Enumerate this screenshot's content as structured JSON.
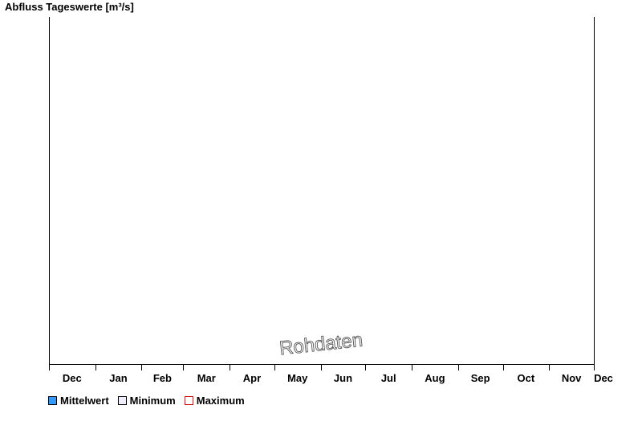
{
  "chart_data": {
    "type": "line",
    "title": "Abfluss Tageswerte [m³/s]",
    "xlabel": "",
    "ylabel": "",
    "x_tick_labels": [
      "Dec",
      "Jan",
      "Feb",
      "Mar",
      "Apr",
      "May",
      "Jun",
      "Jul",
      "Aug",
      "Sep",
      "Oct",
      "Nov",
      "Dec"
    ],
    "series": [
      {
        "name": "Mittelwert",
        "color": "#3399ff",
        "values": []
      },
      {
        "name": "Minimum",
        "color": "#eeeeff",
        "values": []
      },
      {
        "name": "Maximum",
        "color": "#ffffff",
        "values": []
      }
    ],
    "legend_position": "bottom-left",
    "watermark": "Rohdaten",
    "grid": false
  },
  "colors": {
    "axis": "#000000",
    "mittelwert_fill": "#3399ff",
    "mittelwert_border": "#000000",
    "minimum_fill": "#eeeeff",
    "minimum_border": "#000000",
    "maximum_fill": "#ffffff",
    "maximum_border": "#cc0000",
    "watermark_text": "#ffffff",
    "watermark_outline": "#555555"
  }
}
